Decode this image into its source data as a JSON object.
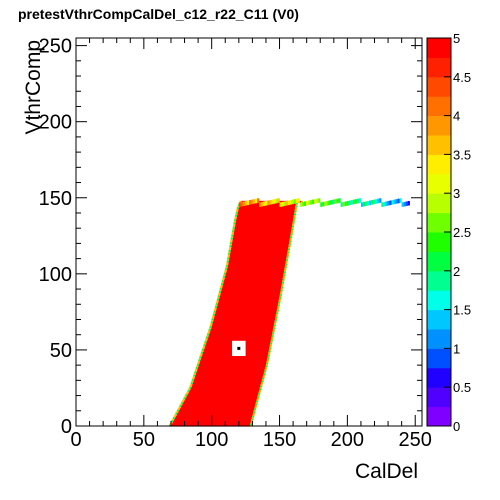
{
  "chart_data": {
    "type": "heatmap",
    "title": "pretestVthrCompCalDel_c12_r22_C11 (V0)",
    "xlabel": "CalDel",
    "ylabel": "VthrComp",
    "xlim": [
      0,
      255
    ],
    "ylim": [
      0,
      255
    ],
    "zlim": [
      0,
      5
    ],
    "x_ticks": [
      "0",
      "50",
      "100",
      "150",
      "200",
      "250"
    ],
    "y_ticks": [
      "0",
      "50",
      "100",
      "150",
      "200",
      "250"
    ],
    "z_ticks": [
      "0",
      "0.5",
      "1",
      "1.5",
      "2",
      "2.5",
      "3",
      "3.5",
      "4",
      "4.5",
      "5"
    ],
    "grid": false,
    "colorbar": "right",
    "saturated_region": {
      "value": 5,
      "left_edge": [
        [
          70,
          0
        ],
        [
          85,
          25
        ],
        [
          100,
          65
        ],
        [
          112,
          105
        ],
        [
          118,
          135
        ],
        [
          120,
          143
        ],
        [
          122,
          147
        ]
      ],
      "right_edge": [
        [
          128,
          0
        ],
        [
          140,
          40
        ],
        [
          150,
          85
        ],
        [
          158,
          125
        ],
        [
          162,
          146
        ],
        [
          170,
          148
        ]
      ]
    },
    "top_plateau": {
      "y": 150,
      "x_range": [
        120,
        245
      ],
      "values": [
        4,
        1
      ]
    },
    "hole": {
      "x": 120,
      "y": 51,
      "value": 0,
      "marker_value": 5
    }
  }
}
